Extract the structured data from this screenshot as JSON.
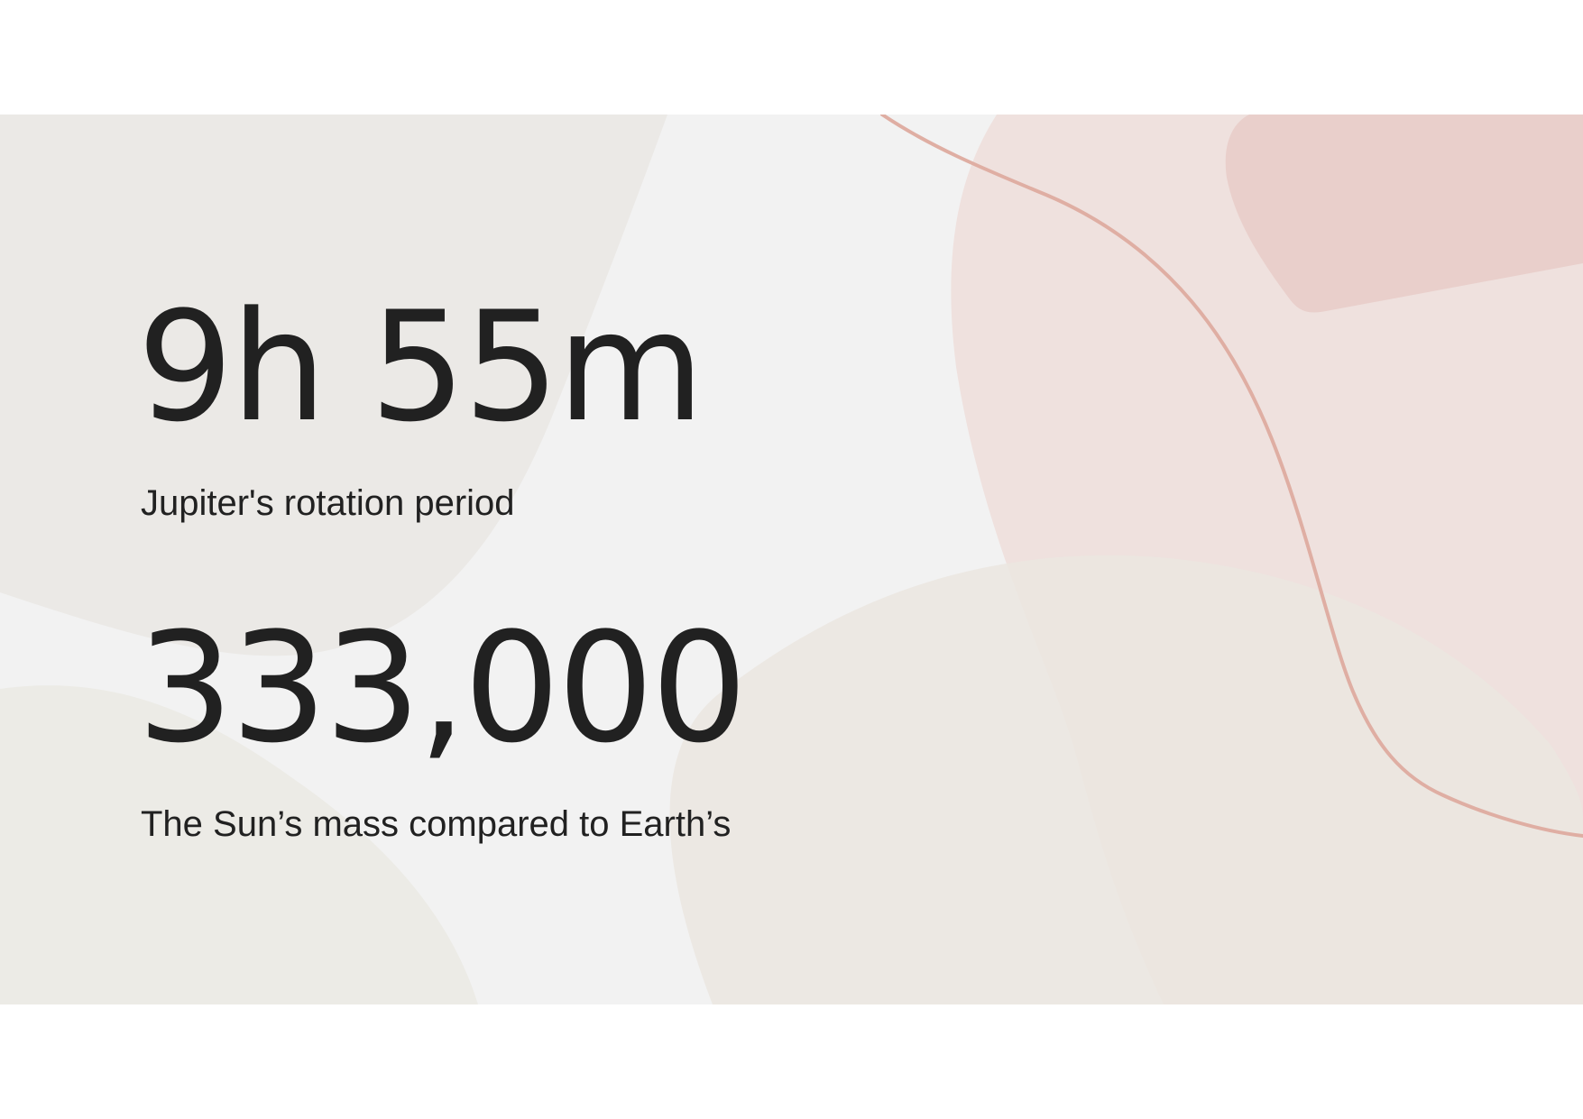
{
  "stats": [
    {
      "value": "9h 55m",
      "label": "Jupiter's rotation period"
    },
    {
      "value": "333,000",
      "label": "The Sun’s mass compared to Earth’s"
    }
  ],
  "colors": {
    "slide_background": "#f2f2f2",
    "text": "#212121",
    "shape_grey": "#ebe9e6",
    "shape_beige": "#ecebe6",
    "shape_pink_light": "#efe1de",
    "shape_pink": "#e9cfcb",
    "accent_line": "#dfaea3"
  }
}
